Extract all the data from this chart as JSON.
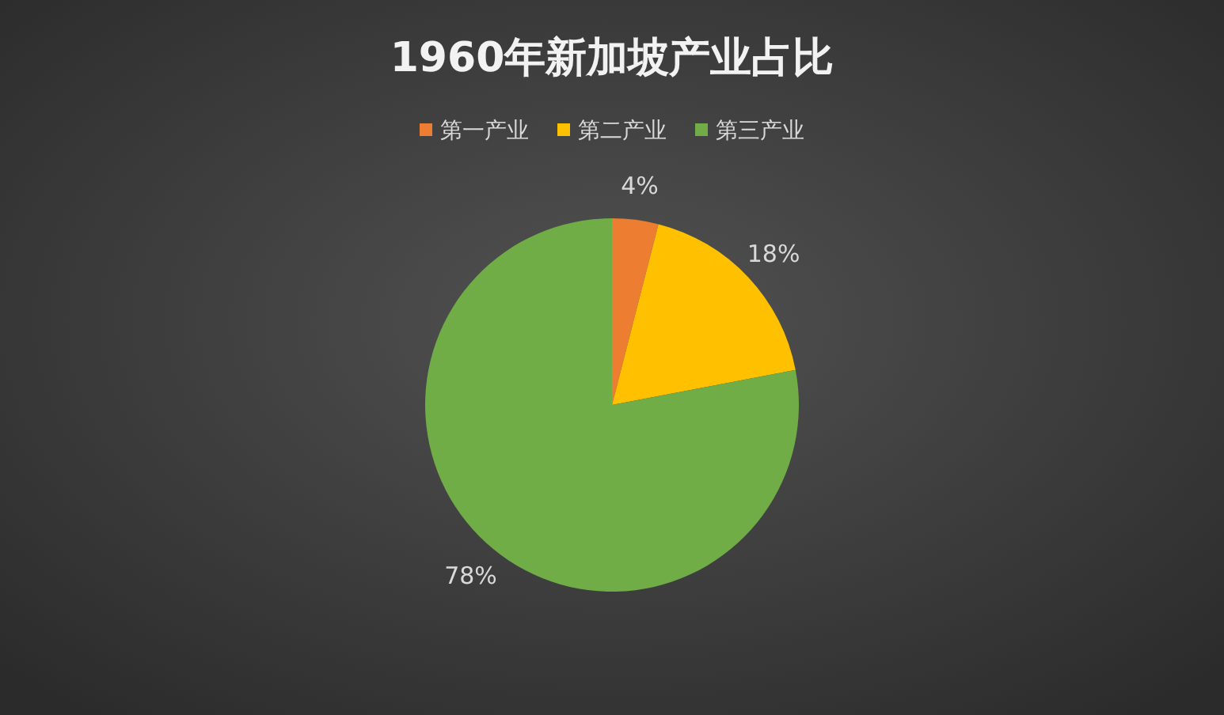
{
  "chart_data": {
    "type": "pie",
    "title": "1960年新加坡产业占比",
    "categories": [
      "第一产业",
      "第二产业",
      "第三产业"
    ],
    "values": [
      4,
      18,
      78
    ],
    "colors": [
      "#ed7d31",
      "#ffc000",
      "#70ad47"
    ],
    "value_labels": [
      "4%",
      "18%",
      "78%"
    ],
    "legend": "top"
  }
}
